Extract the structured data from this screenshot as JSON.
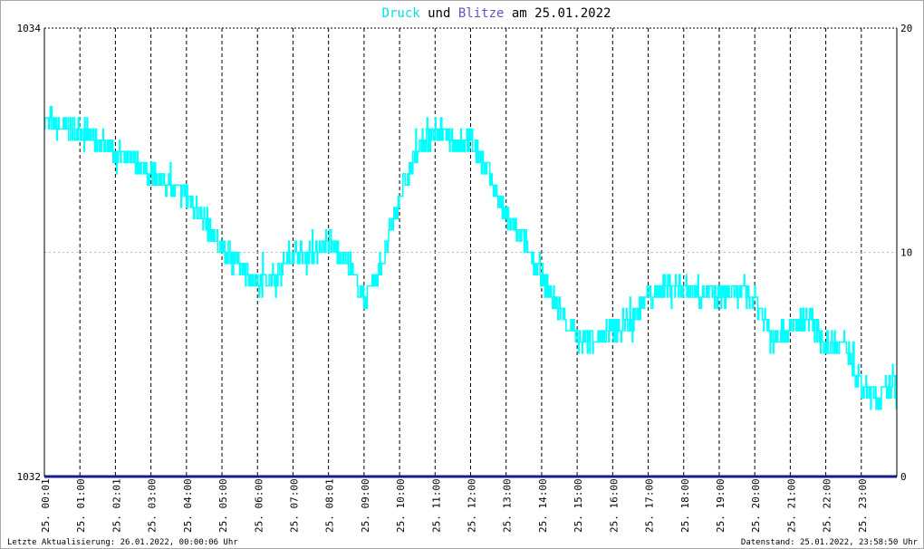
{
  "title": {
    "word1": "Druck",
    "word2": " und ",
    "word3": "Blitze",
    "word4": " am 25.01.2022"
  },
  "colors": {
    "pressure": "#00ffff",
    "lightning": "#6a4fc8",
    "baseline": "#1a1a8c",
    "grid": "#000000",
    "background": "#ffffff"
  },
  "footer": {
    "left": "Letzte Aktualisierung: 26.01.2022, 00:00:06 Uhr",
    "right": "Datenstand: 25.01.2022, 23:58:50 Uhr"
  },
  "chart_data": {
    "type": "line",
    "grid": true,
    "y_left": {
      "min": 1032,
      "max": 1034,
      "ticks": [
        "1034",
        "1032"
      ]
    },
    "y_right": {
      "min": 0,
      "max": 20,
      "ticks": [
        "20",
        "10",
        "0"
      ]
    },
    "x_ticks": [
      "25. 00:01",
      "25. 01:00",
      "25. 02:01",
      "25. 03:00",
      "25. 04:00",
      "25. 05:00",
      "25. 06:00",
      "25. 07:00",
      "25. 08:01",
      "25. 09:00",
      "25. 10:00",
      "25. 11:00",
      "25. 12:00",
      "25. 13:00",
      "25. 14:00",
      "25. 15:00",
      "25. 16:00",
      "25. 17:00",
      "25. 18:00",
      "25. 19:00",
      "25. 20:00",
      "25. 21:00",
      "25. 22:00",
      "25. 23:00"
    ],
    "series": [
      {
        "name": "Druck",
        "axis": "left",
        "x_hours": [
          0,
          0.5,
          1,
          1.5,
          2,
          2.5,
          3,
          3.5,
          4,
          4.5,
          5,
          5.5,
          6,
          6.5,
          7,
          7.5,
          8,
          8.5,
          9,
          9.5,
          10,
          10.5,
          11,
          11.5,
          12,
          12.5,
          13,
          13.5,
          14,
          14.5,
          15,
          15.5,
          16,
          16.5,
          17,
          17.5,
          18,
          18.5,
          19,
          19.5,
          20,
          20.5,
          21,
          21.5,
          22,
          22.5,
          23,
          23.5,
          23.98
        ],
        "values": [
          1033.6,
          1033.55,
          1033.55,
          1033.5,
          1033.45,
          1033.4,
          1033.35,
          1033.3,
          1033.25,
          1033.15,
          1033.0,
          1032.95,
          1032.85,
          1032.9,
          1033.0,
          1033.0,
          1033.05,
          1032.95,
          1032.8,
          1032.95,
          1033.25,
          1033.45,
          1033.55,
          1033.5,
          1033.5,
          1033.35,
          1033.15,
          1033.05,
          1032.9,
          1032.75,
          1032.6,
          1032.62,
          1032.65,
          1032.7,
          1032.8,
          1032.85,
          1032.85,
          1032.82,
          1032.8,
          1032.82,
          1032.8,
          1032.62,
          1032.65,
          1032.72,
          1032.58,
          1032.6,
          1032.4,
          1032.35,
          1032.42
        ]
      },
      {
        "name": "Blitze",
        "axis": "right",
        "x_hours": [
          0,
          23.98
        ],
        "values": [
          0,
          0
        ]
      }
    ]
  }
}
